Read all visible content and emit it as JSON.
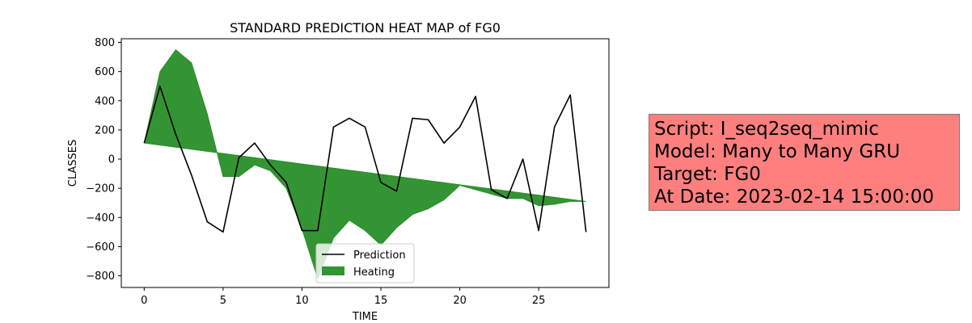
{
  "chart_data": {
    "type": "line",
    "title": "STANDARD PREDICTION HEAT MAP of FG0",
    "xlabel": "TIME",
    "ylabel": "CLASSES",
    "xlim": [
      -1.45,
      29.45
    ],
    "ylim": [
      -880,
      825
    ],
    "xticks": [
      0,
      5,
      10,
      15,
      20,
      25
    ],
    "yticks": [
      -800,
      -600,
      -400,
      -200,
      0,
      200,
      400,
      600,
      800
    ],
    "grid": false,
    "legend_position": "bottom-center",
    "x": [
      0,
      1,
      2,
      3,
      4,
      5,
      6,
      7,
      8,
      9,
      10,
      11,
      12,
      13,
      14,
      15,
      16,
      17,
      18,
      19,
      20,
      21,
      22,
      23,
      24,
      25,
      26,
      27,
      28
    ],
    "series": [
      {
        "name": "Prediction",
        "kind": "line",
        "color": "#000000",
        "values": [
          110,
          500,
          170,
          -110,
          -430,
          -500,
          10,
          110,
          -40,
          -160,
          -490,
          -490,
          220,
          280,
          220,
          -160,
          -220,
          280,
          270,
          110,
          220,
          430,
          -210,
          -270,
          0,
          -490,
          220,
          440,
          -500
        ]
      },
      {
        "name": "Heating",
        "kind": "fill_between",
        "color": "#228b22",
        "baseline_from": 110,
        "baseline_to": -290,
        "values": [
          110,
          600,
          750,
          660,
          310,
          -120,
          -120,
          -40,
          -80,
          -200,
          -480,
          -820,
          -540,
          -420,
          -490,
          -590,
          -470,
          -380,
          -340,
          -280,
          -180,
          -210,
          -240,
          -270,
          -270,
          -320,
          -310,
          -290,
          -290
        ]
      }
    ]
  },
  "info_box": {
    "lines": [
      "Script: I_seq2seq_mimic",
      "Model: Many to Many GRU",
      "Target: FG0",
      "At Date: 2023-02-14 15:00:00"
    ],
    "background": "#ff7f7f"
  }
}
